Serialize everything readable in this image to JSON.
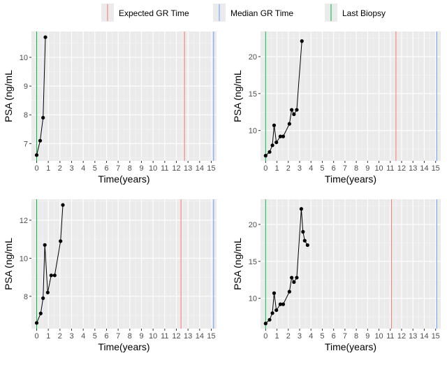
{
  "legend": {
    "items": [
      {
        "label": "Expected GR Time",
        "color": "#F8766D"
      },
      {
        "label": "Median GR Time",
        "color": "#619CFF"
      },
      {
        "label": "Last Biopsy",
        "color": "#00BA38"
      }
    ]
  },
  "chart_data": [
    {
      "type": "line",
      "title": "",
      "xlabel": "Time(years)",
      "ylabel": "PSA (ng/mL",
      "xlim": [
        -0.45,
        15.45
      ],
      "ylim": [
        6.4,
        10.9
      ],
      "xticks": [
        0,
        1,
        2,
        3,
        4,
        5,
        6,
        7,
        8,
        9,
        10,
        11,
        12,
        13,
        14,
        15
      ],
      "yticks": [
        7,
        8,
        9,
        10
      ],
      "x": [
        0,
        0.3,
        0.55,
        0.75
      ],
      "y": [
        6.6,
        7.1,
        7.9,
        10.7
      ],
      "vlines": {
        "last_biopsy": 0,
        "expected_gr": 12.7,
        "median_gr": 15.2
      }
    },
    {
      "type": "line",
      "title": "",
      "xlabel": "Time(years)",
      "ylabel": "PSA (ng/mL",
      "xlim": [
        -0.45,
        15.45
      ],
      "ylim": [
        5.9,
        23.4
      ],
      "xticks": [
        0,
        1,
        2,
        3,
        4,
        5,
        6,
        7,
        8,
        9,
        10,
        11,
        12,
        13,
        14,
        15
      ],
      "yticks": [
        10,
        15,
        20
      ],
      "x": [
        0,
        0.35,
        0.6,
        0.75,
        0.95,
        1.3,
        1.55,
        2.1,
        2.3,
        2.5,
        2.75,
        3.2
      ],
      "y": [
        6.6,
        7.1,
        8.0,
        10.7,
        8.4,
        9.2,
        9.2,
        10.9,
        12.8,
        12.2,
        12.8,
        22.1
      ],
      "vlines": {
        "last_biopsy": 0,
        "expected_gr": 11.5,
        "median_gr": 15.1
      }
    },
    {
      "type": "line",
      "title": "",
      "xlabel": "Time(years)",
      "ylabel": "PSA (ng/mL",
      "xlim": [
        -0.45,
        15.45
      ],
      "ylim": [
        6.3,
        13.1
      ],
      "xticks": [
        0,
        1,
        2,
        3,
        4,
        5,
        6,
        7,
        8,
        9,
        10,
        11,
        12,
        13,
        14,
        15
      ],
      "yticks": [
        8,
        10,
        12
      ],
      "x": [
        0,
        0.35,
        0.55,
        0.7,
        0.95,
        1.25,
        1.55,
        2.05,
        2.25
      ],
      "y": [
        6.6,
        7.1,
        7.9,
        10.7,
        8.2,
        9.1,
        9.1,
        10.9,
        12.8
      ],
      "vlines": {
        "last_biopsy": 0,
        "expected_gr": 12.4,
        "median_gr": 15.2
      }
    },
    {
      "type": "line",
      "title": "",
      "xlabel": "Time(years)",
      "ylabel": "PSA (ng/mL",
      "xlim": [
        -0.45,
        15.45
      ],
      "ylim": [
        5.9,
        23.4
      ],
      "xticks": [
        0,
        1,
        2,
        3,
        4,
        5,
        6,
        7,
        8,
        9,
        10,
        11,
        12,
        13,
        14,
        15
      ],
      "yticks": [
        10,
        15,
        20
      ],
      "x": [
        0,
        0.35,
        0.6,
        0.75,
        0.95,
        1.3,
        1.55,
        2.1,
        2.3,
        2.5,
        2.75,
        3.15,
        3.3,
        3.45,
        3.7
      ],
      "y": [
        6.6,
        7.1,
        8.0,
        10.7,
        8.4,
        9.2,
        9.2,
        10.9,
        12.8,
        12.2,
        12.8,
        22.1,
        19.0,
        17.8,
        17.2
      ],
      "vlines": {
        "last_biopsy": 0,
        "expected_gr": 11.1,
        "median_gr": 15.1
      }
    }
  ]
}
